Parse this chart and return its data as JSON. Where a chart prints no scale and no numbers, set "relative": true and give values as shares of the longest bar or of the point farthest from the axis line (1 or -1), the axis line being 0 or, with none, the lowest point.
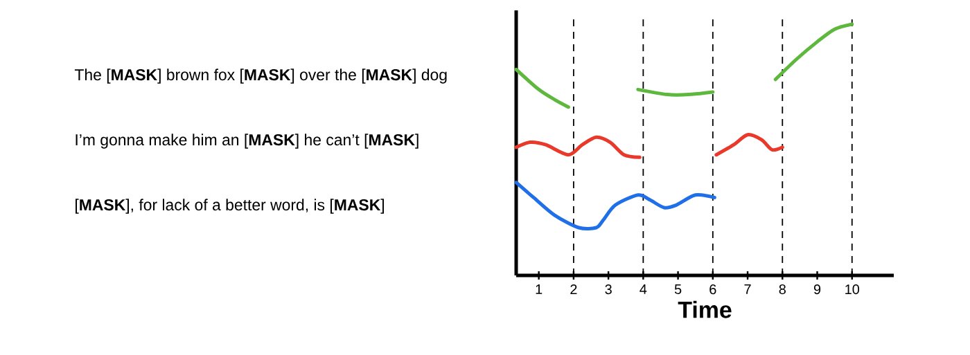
{
  "chart_data": {
    "type": "line",
    "relative": true,
    "xlabel": "Time",
    "xlim": [
      0.35,
      11.2
    ],
    "xticks": [
      1,
      2,
      3,
      4,
      5,
      6,
      7,
      8,
      9,
      10
    ],
    "annotations": [
      "The [**MASK**] brown fox [**MASK**] over the [**MASK**] dog",
      "I’m gonna make him an [**MASK**] he can’t [**MASK**]",
      "[**MASK**], for lack of a better word, is [**MASK**]"
    ],
    "series": [
      {
        "color": "#5db83d",
        "x": [
          0.35,
          1,
          1.45,
          1.85,
          3,
          3.85,
          4.7,
          5.3,
          6,
          7,
          7.8,
          8.4,
          9,
          9.5,
          10
        ],
        "values": [
          0.82,
          0.74,
          0.7,
          0.67,
          null,
          0.74,
          0.72,
          0.72,
          0.73,
          null,
          0.78,
          0.86,
          0.93,
          0.98,
          1.0
        ]
      },
      {
        "color": "#e8392b",
        "x": [
          0.35,
          0.75,
          1.2,
          1.85,
          2.25,
          2.65,
          3.05,
          3.45,
          3.9,
          5,
          6.1,
          6.6,
          7,
          7.4,
          7.7,
          8
        ],
        "values": [
          0.51,
          0.53,
          0.52,
          0.48,
          0.52,
          0.55,
          0.53,
          0.48,
          0.47,
          null,
          0.48,
          0.52,
          0.56,
          0.54,
          0.5,
          0.51
        ]
      },
      {
        "color": "#1f6fe8",
        "x": [
          0.35,
          0.85,
          1.45,
          2.15,
          2.65,
          2.85,
          3.2,
          3.85,
          4.2,
          4.6,
          4.95,
          5.5,
          6.05
        ],
        "values": [
          0.37,
          0.31,
          0.24,
          0.19,
          0.19,
          0.22,
          0.28,
          0.32,
          0.3,
          0.27,
          0.28,
          0.32,
          0.31
        ]
      }
    ],
    "ref_lines": [
      {
        "axis": "x",
        "value": 2,
        "line_style": "dashed"
      },
      {
        "axis": "x",
        "value": 4,
        "line_style": "dashed"
      },
      {
        "axis": "x",
        "value": 6,
        "line_style": "dashed"
      },
      {
        "axis": "x",
        "value": 8,
        "line_style": "dashed"
      },
      {
        "axis": "x",
        "value": 10,
        "line_style": "dashed"
      }
    ]
  }
}
